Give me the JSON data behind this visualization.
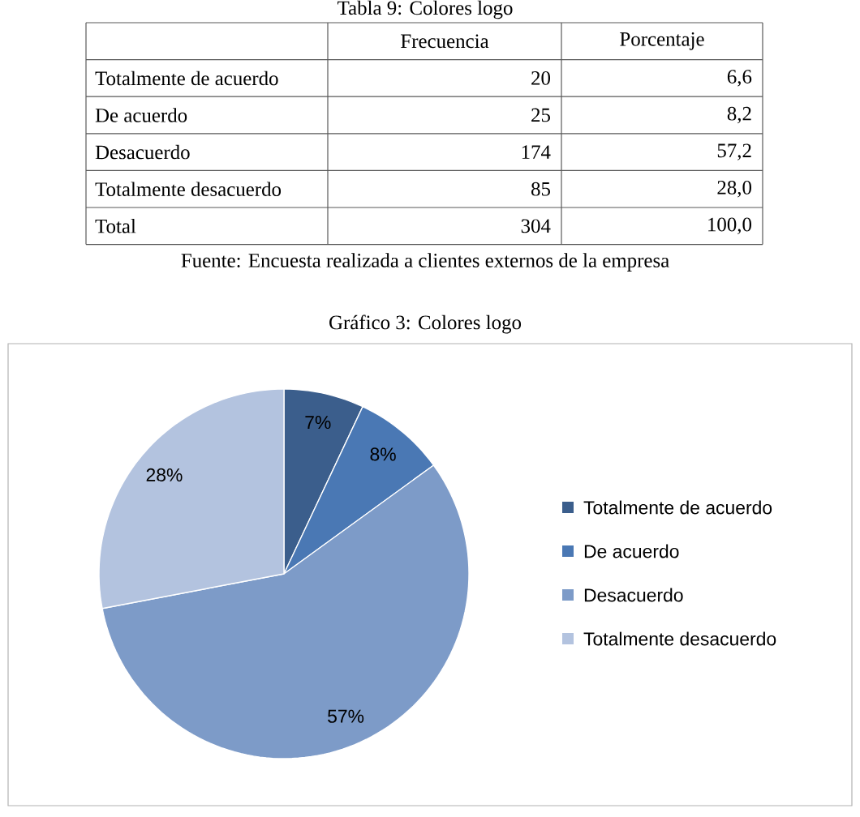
{
  "chart_data": [
    {
      "type": "other",
      "title": "Tabla 9: Colores logo",
      "categories": [
        "Totalmente de acuerdo",
        "De acuerdo",
        "Desacuerdo",
        "Totalmente desacuerdo",
        "Total"
      ],
      "series": [
        {
          "name": "Frecuencia",
          "values": [
            20,
            25,
            174,
            85,
            304
          ]
        },
        {
          "name": "Porcentaje",
          "values": [
            6.6,
            8.2,
            57.2,
            28.0,
            100.0
          ],
          "value_labels": [
            "6,6",
            "8,2",
            "57,2",
            "28,0",
            "100,0"
          ]
        }
      ],
      "data_labels": true,
      "annotations": [
        "Fuente: Encuesta realizada a clientes externos de la empresa"
      ]
    },
    {
      "type": "pie",
      "title": "Gráfico 3: Colores logo",
      "categories": [
        "Totalmente de acuerdo",
        "De acuerdo",
        "Desacuerdo",
        "Totalmente desacuerdo"
      ],
      "values": [
        7,
        8,
        57,
        28
      ],
      "value_labels": [
        "7%",
        "8%",
        "57%",
        "28%"
      ],
      "colors": [
        "#3b5e8c",
        "#4a78b4",
        "#7d9bc8",
        "#b3c3df"
      ],
      "legend": "right"
    }
  ]
}
